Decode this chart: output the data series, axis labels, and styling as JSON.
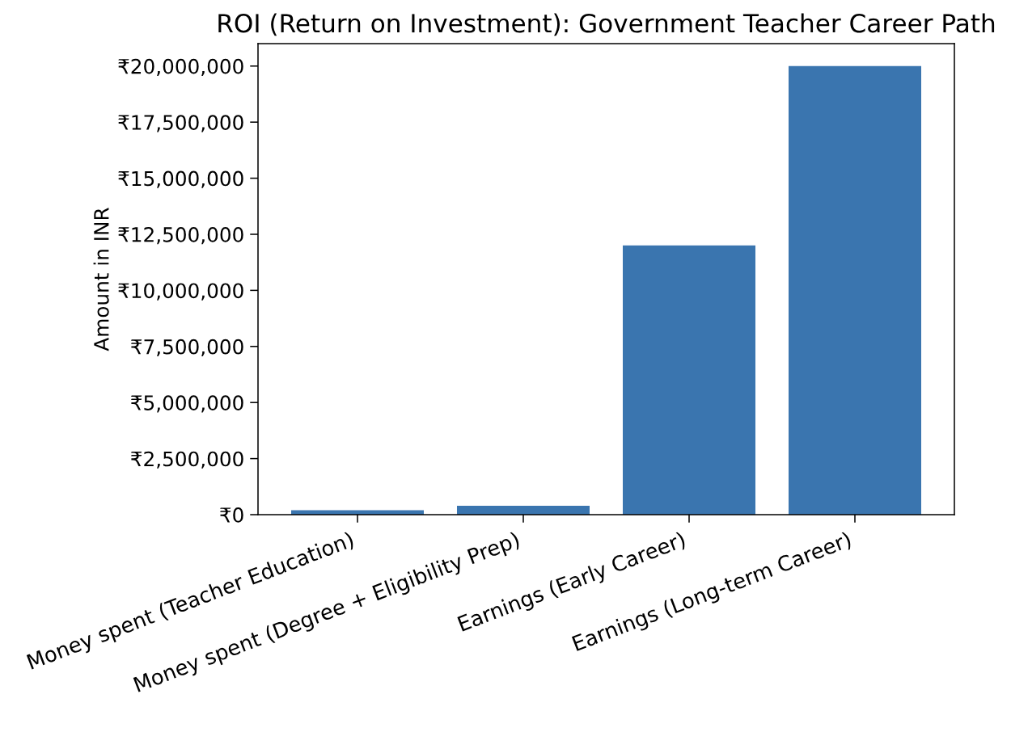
{
  "chart_data": {
    "type": "bar",
    "title": "ROI (Return on Investment): Government Teacher Career Path",
    "ylabel": "Amount in INR",
    "categories": [
      "Money spent (Teacher Education)",
      "Money spent (Degree + Eligibility Prep)",
      "Earnings (Early Career)",
      "Earnings (Long-term Career)"
    ],
    "values": [
      200000,
      400000,
      12000000,
      20000000
    ],
    "color": "#3a75af",
    "ylim": [
      0,
      21000000
    ],
    "yticks": [
      {
        "value": 0,
        "label": "₹0"
      },
      {
        "value": 2500000,
        "label": "₹2,500,000"
      },
      {
        "value": 5000000,
        "label": "₹5,000,000"
      },
      {
        "value": 7500000,
        "label": "₹7,500,000"
      },
      {
        "value": 10000000,
        "label": "₹10,000,000"
      },
      {
        "value": 12500000,
        "label": "₹12,500,000"
      },
      {
        "value": 15000000,
        "label": "₹15,000,000"
      },
      {
        "value": 17500000,
        "label": "₹17,500,000"
      },
      {
        "value": 20000000,
        "label": "₹20,000,000"
      }
    ]
  }
}
